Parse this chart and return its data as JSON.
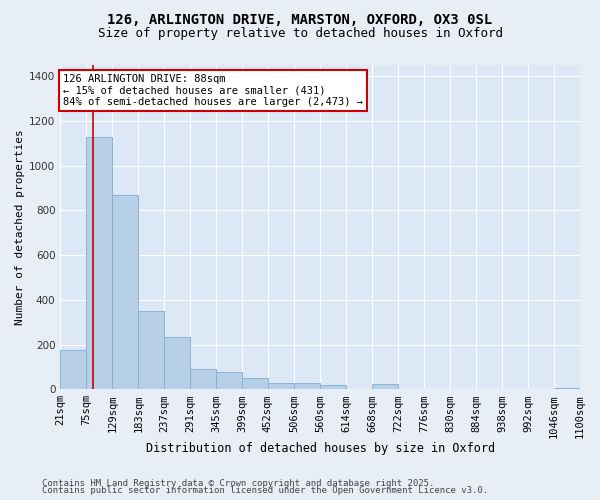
{
  "title1": "126, ARLINGTON DRIVE, MARSTON, OXFORD, OX3 0SL",
  "title2": "Size of property relative to detached houses in Oxford",
  "xlabel": "Distribution of detached houses by size in Oxford",
  "ylabel": "Number of detached properties",
  "bins": [
    "21sqm",
    "75sqm",
    "129sqm",
    "183sqm",
    "237sqm",
    "291sqm",
    "345sqm",
    "399sqm",
    "452sqm",
    "506sqm",
    "560sqm",
    "614sqm",
    "668sqm",
    "722sqm",
    "776sqm",
    "830sqm",
    "884sqm",
    "938sqm",
    "992sqm",
    "1046sqm",
    "1100sqm"
  ],
  "bin_edges": [
    21,
    75,
    129,
    183,
    237,
    291,
    345,
    399,
    452,
    506,
    560,
    614,
    668,
    722,
    776,
    830,
    884,
    938,
    992,
    1046,
    1100
  ],
  "bar_values": [
    175,
    1130,
    870,
    350,
    235,
    90,
    75,
    50,
    30,
    28,
    20,
    0,
    25,
    0,
    0,
    0,
    0,
    0,
    0,
    5
  ],
  "bar_color": "#b8cfe8",
  "bar_edge_color": "#7bafd4",
  "property_size": 88,
  "property_line_color": "#cc0000",
  "annotation_line1": "126 ARLINGTON DRIVE: 88sqm",
  "annotation_line2": "← 15% of detached houses are smaller (431)",
  "annotation_line3": "84% of semi-detached houses are larger (2,473) →",
  "annotation_box_color": "#ffffff",
  "annotation_box_edge_color": "#cc0000",
  "ylim": [
    0,
    1450
  ],
  "yticks": [
    0,
    200,
    400,
    600,
    800,
    1000,
    1200,
    1400
  ],
  "background_color": "#e8eef5",
  "plot_bg_color": "#dce8f5",
  "grid_color": "#ffffff",
  "footer1": "Contains HM Land Registry data © Crown copyright and database right 2025.",
  "footer2": "Contains public sector information licensed under the Open Government Licence v3.0.",
  "title1_fontsize": 10,
  "title2_fontsize": 9,
  "xlabel_fontsize": 8.5,
  "ylabel_fontsize": 8,
  "tick_fontsize": 7.5,
  "annotation_fontsize": 7.5,
  "footer_fontsize": 6.5
}
